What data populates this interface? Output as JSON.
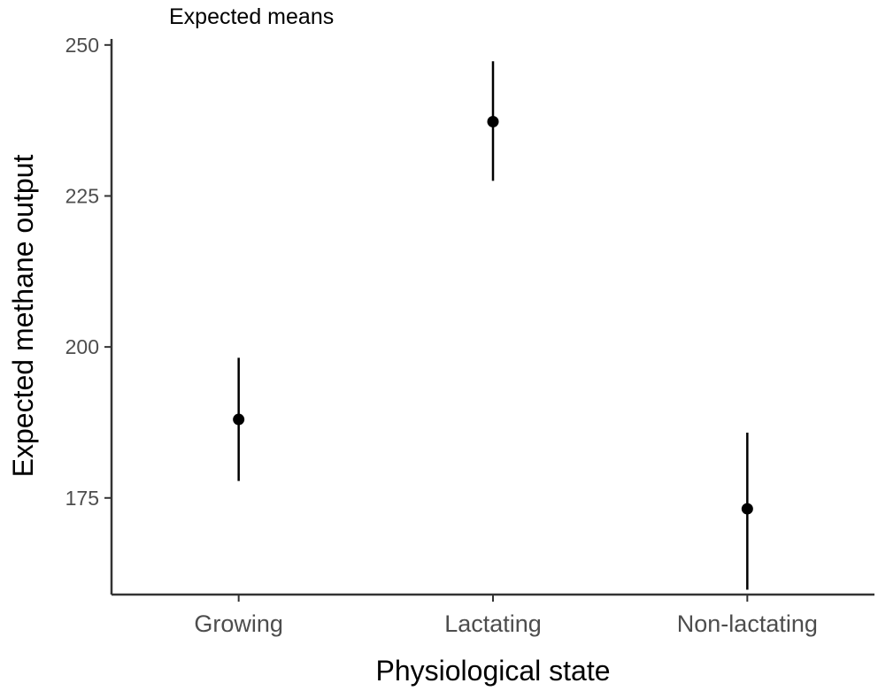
{
  "chart_data": {
    "type": "scatter",
    "title": "Expected means",
    "xlabel": "Physiological state",
    "ylabel": "Expected methane output",
    "categories": [
      "Growing",
      "Lactating",
      "Non-lactating"
    ],
    "series": [
      {
        "values": [
          188,
          237.3,
          173.2
        ],
        "lower": [
          177.8,
          227.5,
          159.8
        ],
        "upper": [
          198.2,
          247.3,
          185.8
        ]
      }
    ],
    "ylim": [
      159,
      251
    ],
    "yticks": [
      175,
      200,
      225,
      250
    ],
    "grid": false,
    "legend": "none",
    "colors": {
      "point": "#000000",
      "errorbar": "#000000",
      "axis": "#333333",
      "tick_text": "#4d4d4d"
    }
  }
}
